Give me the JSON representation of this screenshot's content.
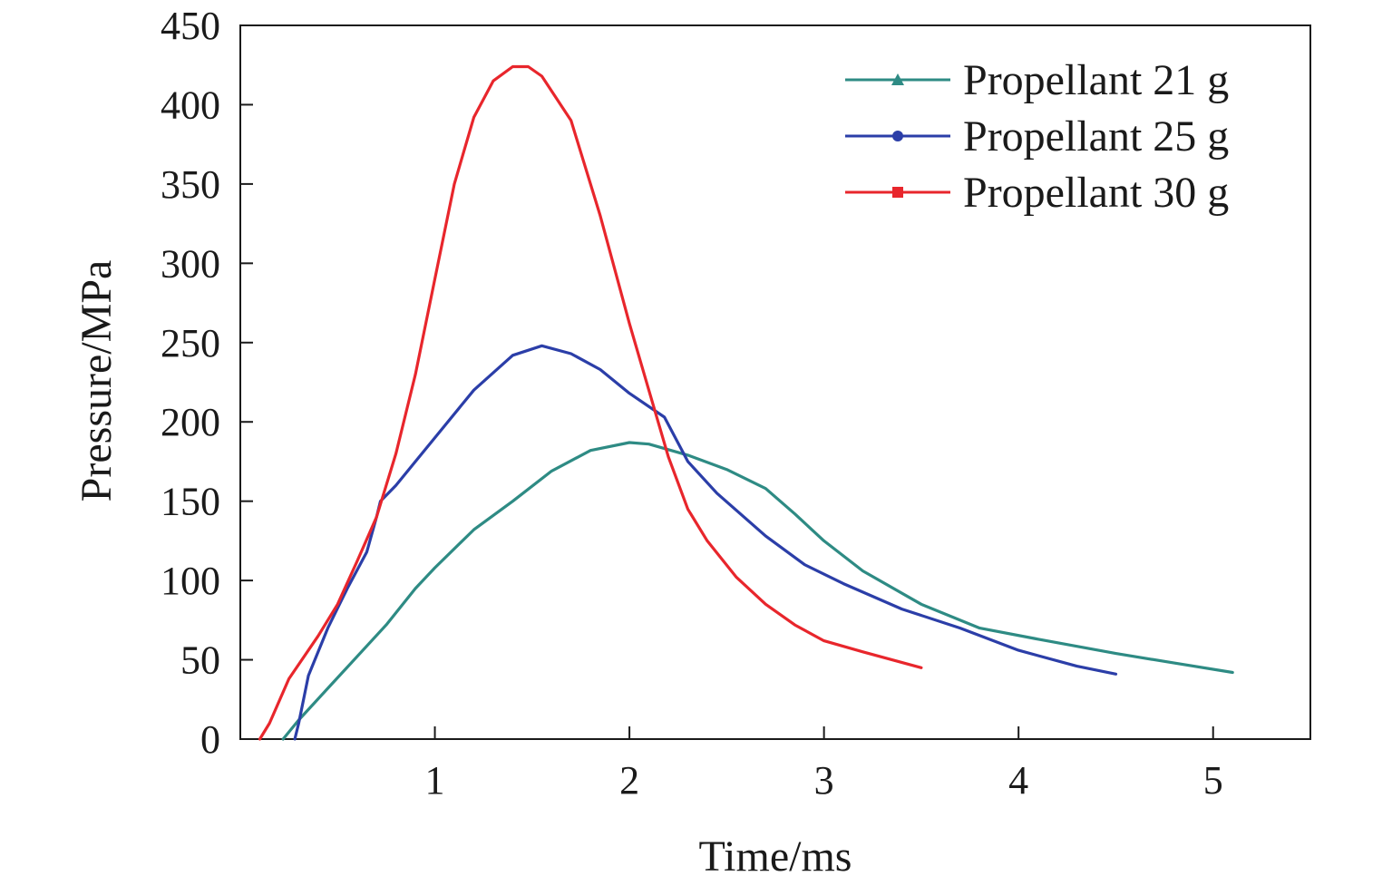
{
  "chart_data": {
    "type": "line",
    "title": "",
    "xlabel": "Time/ms",
    "ylabel": "Pressure/MPa",
    "xlim": [
      0,
      5.5
    ],
    "ylim": [
      0,
      450
    ],
    "xticks": [
      1,
      2,
      3,
      4,
      5
    ],
    "xtick_labels": [
      "1",
      "2",
      "3",
      "4",
      "5"
    ],
    "yticks": [
      0,
      50,
      100,
      150,
      200,
      250,
      300,
      350,
      400,
      450
    ],
    "ytick_labels": [
      "0",
      "50",
      "100",
      "150",
      "200",
      "250",
      "300",
      "350",
      "400",
      "450"
    ],
    "grid": false,
    "legend_position": "top-right",
    "series": [
      {
        "name": "Propellant 21 g",
        "color": "#2e8b84",
        "marker": "triangle",
        "x": [
          0.22,
          0.3,
          0.45,
          0.6,
          0.75,
          0.9,
          1.0,
          1.2,
          1.4,
          1.6,
          1.8,
          2.0,
          2.1,
          2.3,
          2.5,
          2.7,
          2.85,
          3.0,
          3.2,
          3.5,
          3.8,
          4.1,
          4.5,
          4.8,
          5.1
        ],
        "y": [
          0,
          12,
          32,
          52,
          72,
          95,
          108,
          132,
          150,
          169,
          182,
          187,
          186,
          179,
          170,
          158,
          142,
          125,
          106,
          85,
          70,
          63,
          54,
          48,
          42
        ]
      },
      {
        "name": "Propellant 25 g",
        "color": "#2b3ea8",
        "marker": "star",
        "x": [
          0.28,
          0.3,
          0.35,
          0.45,
          0.55,
          0.65,
          0.7,
          0.72,
          0.8,
          1.0,
          1.2,
          1.4,
          1.55,
          1.7,
          1.85,
          2.0,
          2.18,
          2.3,
          2.45,
          2.7,
          2.9,
          3.1,
          3.4,
          3.7,
          4.0,
          4.3,
          4.5
        ],
        "y": [
          0,
          10,
          40,
          70,
          95,
          118,
          140,
          150,
          160,
          190,
          220,
          242,
          248,
          243,
          233,
          218,
          203,
          175,
          155,
          128,
          110,
          98,
          82,
          70,
          56,
          46,
          41
        ]
      },
      {
        "name": "Propellant 30 g",
        "color": "#e8262c",
        "marker": "square",
        "x": [
          0.1,
          0.15,
          0.25,
          0.4,
          0.5,
          0.6,
          0.7,
          0.8,
          0.9,
          1.0,
          1.1,
          1.2,
          1.3,
          1.4,
          1.48,
          1.55,
          1.7,
          1.85,
          2.0,
          2.1,
          2.2,
          2.3,
          2.4,
          2.55,
          2.7,
          2.85,
          3.0,
          3.2,
          3.35,
          3.5
        ],
        "y": [
          0,
          10,
          38,
          65,
          85,
          112,
          140,
          180,
          230,
          290,
          350,
          392,
          415,
          424,
          424,
          418,
          390,
          330,
          262,
          220,
          178,
          145,
          125,
          102,
          85,
          72,
          62,
          55,
          50,
          45
        ]
      }
    ]
  }
}
